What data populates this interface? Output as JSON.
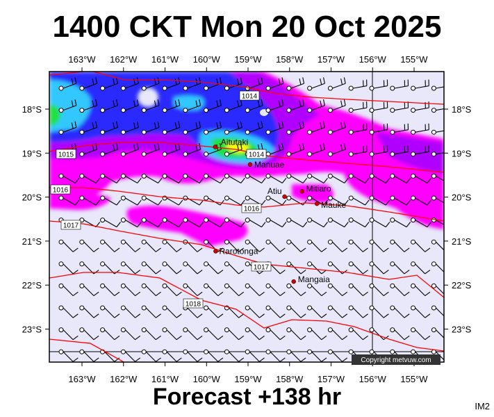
{
  "title": "1400 CKT Mon 20 Oct 2025",
  "subtitle": "Forecast +138 hr",
  "corner_label": "IM2",
  "copyright": "Copyright metvuw.com",
  "colors": {
    "background": "#e8e8fa",
    "pressure_line": "#ff0000",
    "town_marker": "#cc0000",
    "rain_magenta": "#ff00ff",
    "rain_purple": "#a000ff",
    "rain_blue": "#2020ff",
    "rain_cyan": "#00c8ff",
    "rain_green": "#00e000",
    "rain_yellow": "#ffff00"
  },
  "longitude_labels": [
    "163°W",
    "162°W",
    "161°W",
    "160°W",
    "159°W",
    "158°W",
    "157°W",
    "156°W",
    "155°W"
  ],
  "latitude_labels": [
    "18°S",
    "19°S",
    "20°S",
    "21°S",
    "22°S",
    "23°S"
  ],
  "isobar_labels": [
    "1014",
    "1015",
    "1016",
    "1016",
    "1017",
    "1017",
    "1018",
    "1014"
  ],
  "towns": [
    {
      "name": "Aitutaki",
      "lon": -159.79,
      "lat": -18.86
    },
    {
      "name": "Manuae",
      "lon": -158.95,
      "lat": -19.26
    },
    {
      "name": "Atiu",
      "lon": -158.12,
      "lat": -19.99
    },
    {
      "name": "Mitiaro",
      "lon": -157.7,
      "lat": -19.87
    },
    {
      "name": "Mauke",
      "lon": -157.34,
      "lat": -20.15
    },
    {
      "name": "Rarotonga",
      "lon": -159.78,
      "lat": -21.23
    },
    {
      "name": "Mangaia",
      "lon": -157.9,
      "lat": -21.92
    }
  ]
}
